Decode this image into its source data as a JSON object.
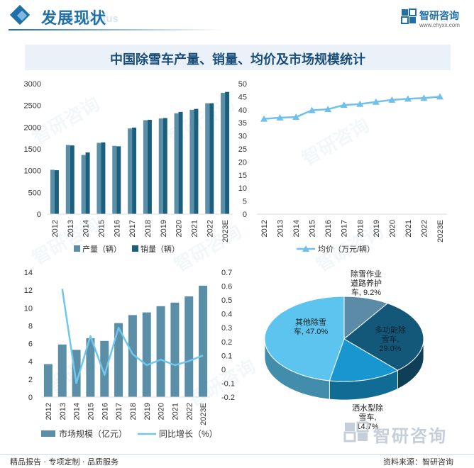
{
  "header": {
    "title": "发展现状",
    "subtitle_en": "ent status"
  },
  "logo": {
    "name": "智研咨询",
    "url": "www.chyxx.com"
  },
  "banner": {
    "title": "中国除雪车产量、销量、均价及市场规模统计"
  },
  "watermark": {
    "text": "智研咨询"
  },
  "colors": {
    "production": "#5b8fa8",
    "sales": "#1b5f7e",
    "price": "#6fc0ea",
    "market": "#5b8fa8",
    "growth": "#6fc7ee"
  },
  "chart_data": [
    {
      "type": "bar",
      "categories": [
        "2012",
        "2013",
        "2014",
        "2015",
        "2016",
        "2017",
        "2018",
        "2019",
        "2020",
        "2021",
        "2022",
        "2023E"
      ],
      "series": [
        {
          "name": "产量（辆）",
          "values": [
            1020,
            1590,
            1360,
            1640,
            1570,
            1970,
            2160,
            2200,
            2320,
            2400,
            2550,
            2790
          ]
        },
        {
          "name": "销量（辆）",
          "values": [
            1010,
            1580,
            1420,
            1650,
            1560,
            1990,
            2170,
            2210,
            2350,
            2420,
            2550,
            2810
          ]
        }
      ],
      "ylim": [
        0,
        3000
      ],
      "yticks": [
        0,
        500,
        1000,
        1500,
        2000,
        2500,
        3000
      ],
      "legend": "bottom"
    },
    {
      "type": "line",
      "categories": [
        "2012",
        "2013",
        "2014",
        "2015",
        "2016",
        "2017",
        "2018",
        "2019",
        "2020",
        "2021",
        "2022",
        "2023E"
      ],
      "series": [
        {
          "name": "均价（万元/辆）",
          "values": [
            36.5,
            37,
            37.2,
            39.8,
            40.2,
            41.8,
            42.2,
            43,
            43.8,
            44.2,
            44.5,
            45
          ]
        }
      ],
      "ylim": [
        0,
        50
      ],
      "yticks": [
        0,
        5,
        10,
        15,
        20,
        25,
        30,
        35,
        40,
        45,
        50
      ],
      "legend": "bottom"
    },
    {
      "type": "bar",
      "categories": [
        "2012",
        "2013",
        "2014",
        "2015",
        "2016",
        "2017",
        "2018",
        "2019",
        "2020",
        "2021",
        "2022",
        "2023E"
      ],
      "series": [
        {
          "name": "市场规模（亿元）",
          "values": [
            3.7,
            5.9,
            5.3,
            6.6,
            6.3,
            8.3,
            9.2,
            9.5,
            10.2,
            10.6,
            11.3,
            12.5
          ]
        },
        {
          "name": "同比增长（%）",
          "type": "line",
          "axis": "right",
          "values": [
            null,
            0.58,
            -0.1,
            0.24,
            -0.04,
            0.3,
            0.11,
            0.03,
            0.07,
            0.03,
            0.06,
            0.1
          ]
        }
      ],
      "ylim": [
        0,
        14
      ],
      "yticks": [
        0,
        2,
        4,
        6,
        8,
        10,
        12,
        14
      ],
      "y2lim": [
        -0.2,
        0.7
      ],
      "y2ticks": [
        "-0.2",
        "-0.1",
        "0",
        "0.1",
        "0.2",
        "0.3",
        "0.4",
        "0.5",
        "0.6",
        "0.7"
      ],
      "legend": "bottom"
    },
    {
      "type": "pie",
      "slices": [
        {
          "label_lines": [
            "除雪作业",
            "道路养护",
            "车, 9.2%"
          ],
          "value": 9.2,
          "color": "#5b8ba6"
        },
        {
          "label_lines": [
            "多功能除",
            "雪车,",
            "29.0%"
          ],
          "value": 29.0,
          "color": "#135779"
        },
        {
          "label_lines": [
            "洒水型除",
            "雪车,",
            "14.7%"
          ],
          "value": 14.7,
          "color": "#1796cf"
        },
        {
          "label_lines": [
            "其他除雪",
            "车, 47.0%"
          ],
          "value": 47.0,
          "color": "#5cc4ef"
        }
      ]
    }
  ],
  "footer": {
    "left": "精品报告 · 专项定制 · 品质服务",
    "right": "资料来源：智研咨询"
  }
}
